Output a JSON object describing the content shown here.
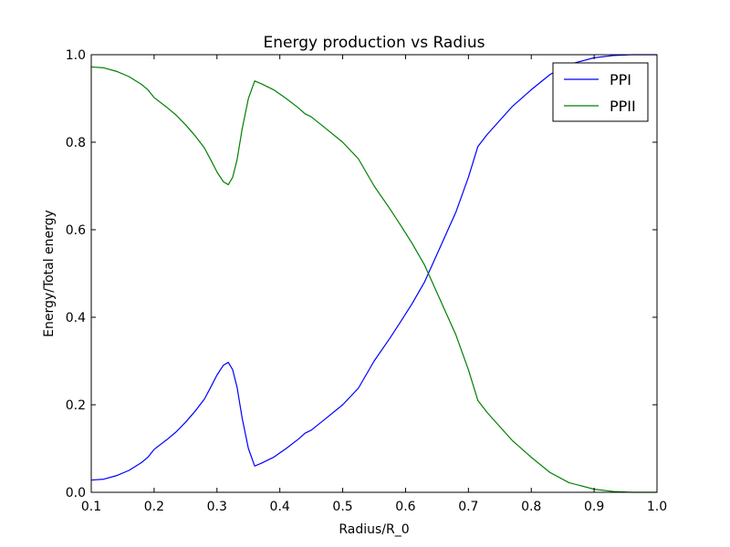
{
  "chart_data": {
    "type": "line",
    "title": "Energy production vs Radius",
    "xlabel": "Radius/R_0",
    "ylabel": "Energy/Total energy",
    "xlim": [
      0.1,
      1.0
    ],
    "ylim": [
      0.0,
      1.0
    ],
    "xticks": [
      "0.1",
      "0.2",
      "0.3",
      "0.4",
      "0.5",
      "0.6",
      "0.7",
      "0.8",
      "0.9",
      "1.0"
    ],
    "yticks": [
      "0.0",
      "0.2",
      "0.4",
      "0.6",
      "0.8",
      "1.0"
    ],
    "grid": false,
    "legend": "top-right",
    "series": [
      {
        "name": "PPI",
        "color": "#0000ff",
        "points": [
          [
            0.1,
            0.028
          ],
          [
            0.12,
            0.03
          ],
          [
            0.14,
            0.038
          ],
          [
            0.16,
            0.05
          ],
          [
            0.18,
            0.068
          ],
          [
            0.19,
            0.08
          ],
          [
            0.2,
            0.098
          ],
          [
            0.22,
            0.12
          ],
          [
            0.235,
            0.138
          ],
          [
            0.25,
            0.16
          ],
          [
            0.265,
            0.185
          ],
          [
            0.28,
            0.213
          ],
          [
            0.29,
            0.24
          ],
          [
            0.3,
            0.268
          ],
          [
            0.31,
            0.29
          ],
          [
            0.318,
            0.297
          ],
          [
            0.325,
            0.28
          ],
          [
            0.332,
            0.24
          ],
          [
            0.34,
            0.17
          ],
          [
            0.35,
            0.1
          ],
          [
            0.36,
            0.06
          ],
          [
            0.37,
            0.066
          ],
          [
            0.39,
            0.08
          ],
          [
            0.41,
            0.1
          ],
          [
            0.43,
            0.122
          ],
          [
            0.44,
            0.135
          ],
          [
            0.45,
            0.142
          ],
          [
            0.47,
            0.165
          ],
          [
            0.5,
            0.2
          ],
          [
            0.525,
            0.238
          ],
          [
            0.55,
            0.3
          ],
          [
            0.575,
            0.352
          ],
          [
            0.59,
            0.385
          ],
          [
            0.61,
            0.43
          ],
          [
            0.63,
            0.48
          ],
          [
            0.655,
            0.56
          ],
          [
            0.68,
            0.64
          ],
          [
            0.7,
            0.72
          ],
          [
            0.715,
            0.79
          ],
          [
            0.73,
            0.818
          ],
          [
            0.75,
            0.85
          ],
          [
            0.77,
            0.882
          ],
          [
            0.8,
            0.92
          ],
          [
            0.83,
            0.955
          ],
          [
            0.86,
            0.978
          ],
          [
            0.9,
            0.993
          ],
          [
            0.93,
            0.998
          ],
          [
            0.96,
            1.0
          ],
          [
            1.0,
            1.0
          ]
        ]
      },
      {
        "name": "PPII",
        "color": "#008000",
        "points": [
          [
            0.1,
            0.972
          ],
          [
            0.12,
            0.97
          ],
          [
            0.14,
            0.962
          ],
          [
            0.16,
            0.95
          ],
          [
            0.18,
            0.932
          ],
          [
            0.19,
            0.92
          ],
          [
            0.2,
            0.902
          ],
          [
            0.22,
            0.88
          ],
          [
            0.235,
            0.862
          ],
          [
            0.25,
            0.84
          ],
          [
            0.265,
            0.815
          ],
          [
            0.28,
            0.787
          ],
          [
            0.29,
            0.76
          ],
          [
            0.3,
            0.732
          ],
          [
            0.31,
            0.71
          ],
          [
            0.318,
            0.703
          ],
          [
            0.325,
            0.72
          ],
          [
            0.332,
            0.76
          ],
          [
            0.34,
            0.83
          ],
          [
            0.35,
            0.9
          ],
          [
            0.36,
            0.94
          ],
          [
            0.37,
            0.934
          ],
          [
            0.39,
            0.92
          ],
          [
            0.41,
            0.9
          ],
          [
            0.43,
            0.878
          ],
          [
            0.44,
            0.865
          ],
          [
            0.45,
            0.858
          ],
          [
            0.47,
            0.835
          ],
          [
            0.5,
            0.8
          ],
          [
            0.525,
            0.762
          ],
          [
            0.55,
            0.7
          ],
          [
            0.575,
            0.648
          ],
          [
            0.59,
            0.615
          ],
          [
            0.61,
            0.57
          ],
          [
            0.63,
            0.52
          ],
          [
            0.655,
            0.44
          ],
          [
            0.68,
            0.36
          ],
          [
            0.7,
            0.28
          ],
          [
            0.715,
            0.21
          ],
          [
            0.73,
            0.182
          ],
          [
            0.75,
            0.15
          ],
          [
            0.77,
            0.118
          ],
          [
            0.8,
            0.08
          ],
          [
            0.83,
            0.045
          ],
          [
            0.86,
            0.022
          ],
          [
            0.9,
            0.007
          ],
          [
            0.93,
            0.002
          ],
          [
            0.96,
            0.0
          ],
          [
            1.0,
            0.0
          ]
        ]
      }
    ]
  }
}
